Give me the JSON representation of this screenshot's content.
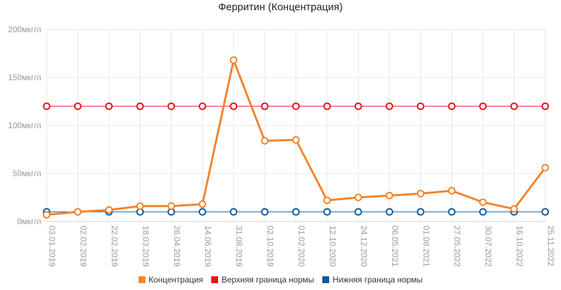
{
  "chart_data": {
    "type": "line",
    "title": "Ферритин (Концентрация)",
    "categories": [
      "03.01.2019",
      "02.02.2019",
      "22.02.2019",
      "18.03.2019",
      "26.04.2019",
      "14.06.2019",
      "31.08.2019",
      "02.10.2019",
      "01.02.2020",
      "12.10.2020",
      "24.12.2020",
      "06.05.2021",
      "01.08.2021",
      "27.05.2022",
      "30.07.2022",
      "16.10.2022",
      "25.11.2022"
    ],
    "y_ticks": [
      "0мкг/л",
      "50мкг/л",
      "100мкг/л",
      "150мкг/л",
      "200мкг/л"
    ],
    "ylim": [
      0,
      200
    ],
    "grid": true,
    "legend_position": "bottom",
    "series": [
      {
        "name": "Концентрация",
        "color": "#f5832a",
        "values": [
          7,
          10,
          12,
          16,
          16,
          18,
          168,
          84,
          85,
          22,
          25,
          27,
          29,
          32,
          20,
          13,
          56
        ]
      },
      {
        "name": "Верхняя граница нормы",
        "color": "#e8101c",
        "values": [
          120,
          120,
          120,
          120,
          120,
          120,
          120,
          120,
          120,
          120,
          120,
          120,
          120,
          120,
          120,
          120,
          120
        ]
      },
      {
        "name": "Нижняя граница нормы",
        "color": "#0a5a9c",
        "values": [
          10,
          10,
          10,
          10,
          10,
          10,
          10,
          10,
          10,
          10,
          10,
          10,
          10,
          10,
          10,
          10,
          10
        ]
      }
    ]
  }
}
